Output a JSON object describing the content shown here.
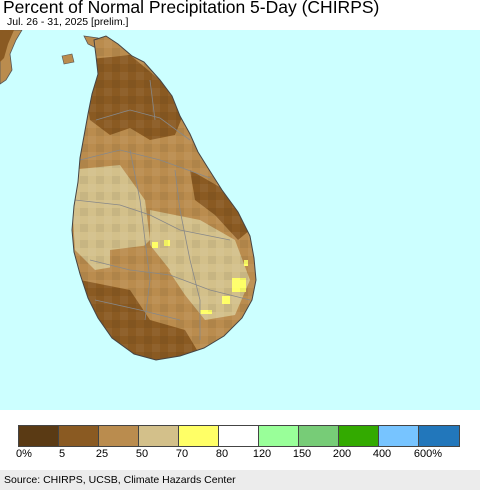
{
  "header": {
    "title": "Percent of Normal Precipitation 5-Day (CHIRPS)",
    "subtitle": "Jul. 26 - 31, 2025 [prelim.]"
  },
  "map": {
    "ocean_color": "#ccffff",
    "land_color_default": "#ba8c4e"
  },
  "legend": {
    "labels": [
      "0%",
      "5",
      "25",
      "50",
      "70",
      "80",
      "120",
      "150",
      "200",
      "400",
      "600%"
    ],
    "colors": [
      "#5a3a14",
      "#8a5a22",
      "#ba8c4e",
      "#d3c08a",
      "#ffff66",
      "#ffffff",
      "#99ff99",
      "#77cc77",
      "#33aa00",
      "#77c4ff",
      "#2277bb"
    ]
  },
  "footer": {
    "source": "Source: CHIRPS, UCSB, Climate Hazards Center"
  }
}
